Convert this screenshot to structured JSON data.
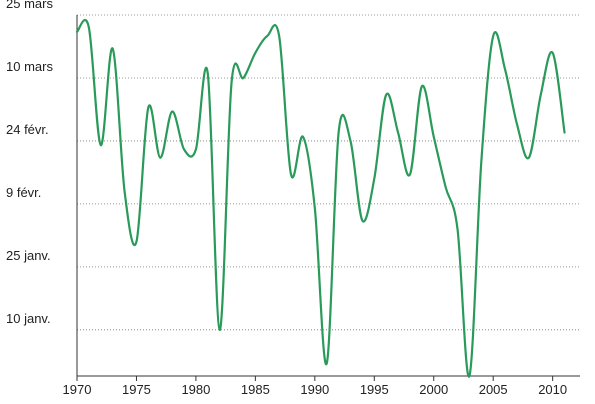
{
  "chart_data": {
    "type": "line",
    "title": "",
    "xlabel": "",
    "ylabel": "",
    "x_ticks": [
      "1970",
      "1975",
      "1980",
      "1985",
      "1990",
      "1995",
      "2000",
      "2005",
      "2010"
    ],
    "x_tick_values": [
      1970,
      1975,
      1980,
      1985,
      1990,
      1995,
      2000,
      2005,
      2010
    ],
    "xlim": [
      1970,
      2012.3
    ],
    "y_unit": "day of year",
    "y_ticks": [
      "10 janv.",
      "25 janv.",
      "9 févr.",
      "24 févr.",
      "10 mars",
      "25 mars"
    ],
    "y_tick_values": [
      10,
      25,
      40,
      55,
      70,
      85
    ],
    "ylim": [
      -1,
      85
    ],
    "grid": "horizontal dotted",
    "legend": "none",
    "colors": {
      "line": "#2a9a5a",
      "grid": "#777777",
      "axis": "#333333"
    },
    "series": [
      {
        "x": [
          1970,
          1971,
          1972,
          1973,
          1974,
          1975,
          1976,
          1977,
          1978,
          1979,
          1980,
          1981,
          1982,
          1983,
          1984,
          1985,
          1986,
          1987,
          1988,
          1989,
          1990,
          1991,
          1992,
          1993,
          1994,
          1995,
          1996,
          1997,
          1998,
          1999,
          2000,
          2001,
          2002,
          2003,
          2004,
          2005,
          2006,
          2007,
          2008,
          2009,
          2010,
          2011
        ],
        "y": [
          81,
          82,
          54,
          77,
          43,
          31,
          63,
          51,
          62,
          53,
          53,
          71,
          10,
          69,
          70,
          76,
          80,
          80,
          47,
          56,
          39,
          2,
          57,
          55,
          36,
          46,
          66,
          57,
          47,
          68,
          56,
          44,
          34,
          -1,
          50,
          80,
          72,
          59,
          51,
          66,
          76,
          57
        ]
      }
    ]
  }
}
